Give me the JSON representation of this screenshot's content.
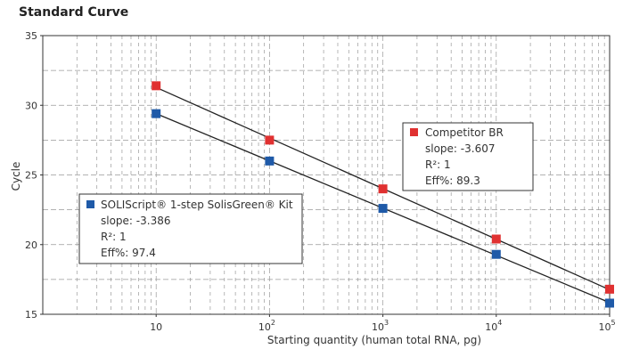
{
  "chart_data": {
    "type": "scatter",
    "title": "Standard Curve",
    "xlabel": "Starting quantity (human total RNA, pg)",
    "ylabel": "Cycle",
    "xscale": "log",
    "xlim": [
      1,
      100000
    ],
    "ylim": [
      15,
      35
    ],
    "x_ticks": [
      {
        "base": "10",
        "exp": ""
      },
      {
        "base": "10",
        "exp": "2"
      },
      {
        "base": "10",
        "exp": "3"
      },
      {
        "base": "10",
        "exp": "4"
      },
      {
        "base": "10",
        "exp": "5"
      }
    ],
    "y_ticks": [
      "15",
      "20",
      "25",
      "30",
      "35"
    ],
    "grid": true,
    "series": [
      {
        "name": "SOLIScript® 1-step SolisGreen® Kit",
        "color": "#1f5aa8",
        "x": [
          10,
          100,
          1000,
          10000,
          100000
        ],
        "y": [
          29.4,
          26.0,
          22.6,
          19.3,
          15.8
        ],
        "legend_lines": [
          "slope: -3.386",
          "R²: 1",
          "Eff%: 97.4"
        ]
      },
      {
        "name": "Competitor BR",
        "color": "#e03131",
        "x": [
          10,
          100,
          1000,
          10000,
          100000
        ],
        "y": [
          31.4,
          27.5,
          24.0,
          20.4,
          16.8
        ],
        "legend_lines": [
          "slope: -3.607",
          "R²: 1",
          "Eff%: 89.3"
        ]
      }
    ],
    "legend_placement": [
      "middle-left",
      "top-right"
    ]
  }
}
